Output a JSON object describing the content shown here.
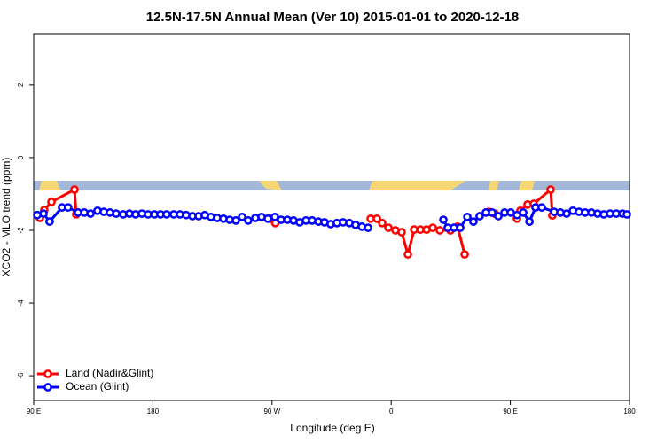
{
  "chart_data": {
    "type": "line",
    "title": "12.5N-17.5N Annual Mean (Ver 10)   2015-01-01 to 2020-12-18",
    "x_label": "Longitude (deg E)",
    "y_label": "XCO2 - MLO trend (ppm)",
    "xlim": [
      90,
      540
    ],
    "xticks": [
      {
        "value": 90,
        "label": "90 E"
      },
      180,
      {
        "value": 270,
        "label": "90 W"
      },
      {
        "value": 360,
        "label": "0"
      },
      {
        "value": 450,
        "label": "90 E"
      },
      {
        "value": 540,
        "label": "180"
      }
    ],
    "ylim": [
      -6.68,
      3.41
    ],
    "yticks": [
      2,
      0,
      -2,
      -4,
      -6
    ],
    "legend": "bottom-left",
    "series": [
      {
        "name": "Land (Nadir&Glint)",
        "color": "#ff0000",
        "x": [
          94.7,
          98,
          103.4,
          120.8,
          122.1,
          195,
          268.8,
          272.5,
          300,
          344.5,
          349.2,
          353.2,
          357.9,
          363.2,
          367.9,
          372.6,
          377.3,
          382,
          386.7,
          391.4,
          396.7,
          404.7,
          410.1,
          415.5,
          425,
          433.5,
          438.2,
          445,
          455,
          457.6,
          463,
          467.7,
          480.4,
          481.7
        ],
        "values": [
          -1.66,
          -1.44,
          -1.22,
          -0.88,
          -1.56,
          null,
          -1.68,
          -1.8,
          null,
          -1.68,
          -1.68,
          -1.8,
          -1.93,
          -2.0,
          -2.05,
          -2.66,
          -1.98,
          -1.98,
          -1.98,
          -1.93,
          -2.0,
          -2.0,
          -1.9,
          -2.66,
          null,
          -1.49,
          -1.54,
          null,
          -1.68,
          -1.46,
          -1.29,
          -1.27,
          -0.88,
          -1.59
        ]
      },
      {
        "name": "Ocean (Glint)",
        "color": "#0000ff",
        "x": [
          92.7,
          97.4,
          102,
          111.4,
          116,
          123.5,
          128.2,
          132.9,
          138.2,
          142.9,
          147.6,
          152.3,
          157.6,
          162.3,
          167,
          171.7,
          176.4,
          181.1,
          185.8,
          190.4,
          195.8,
          200.5,
          205.2,
          209.9,
          214.6,
          219.2,
          223.9,
          228.6,
          233.3,
          238,
          242.7,
          247.4,
          252,
          257.4,
          262.1,
          266.8,
          272.1,
          276.8,
          281.5,
          286.2,
          290.9,
          295.6,
          300.3,
          305,
          309.6,
          314.3,
          319,
          323.7,
          328.4,
          333.1,
          337.8,
          342.5,
          370,
          399.4,
          402.7,
          407.4,
          412.1,
          417.5,
          422.1,
          426.8,
          431.5,
          436.2,
          440.9,
          445.6,
          450.3,
          455,
          459.7,
          464.4,
          469,
          473.7,
          483.1,
          487.8,
          492.5,
          497.2,
          501.8,
          506.5,
          511.2,
          515.9,
          520.6,
          525.3,
          530,
          534.7,
          538
        ],
        "values": [
          -1.58,
          -1.54,
          -1.76,
          -1.37,
          -1.37,
          -1.51,
          -1.51,
          -1.54,
          -1.46,
          -1.49,
          -1.51,
          -1.54,
          -1.56,
          -1.54,
          -1.56,
          -1.54,
          -1.56,
          -1.56,
          -1.56,
          -1.56,
          -1.56,
          -1.56,
          -1.58,
          -1.61,
          -1.61,
          -1.58,
          -1.63,
          -1.66,
          -1.68,
          -1.71,
          -1.73,
          -1.63,
          -1.73,
          -1.66,
          -1.63,
          -1.68,
          -1.63,
          -1.71,
          -1.71,
          -1.73,
          -1.78,
          -1.73,
          -1.73,
          -1.76,
          -1.78,
          -1.83,
          -1.8,
          -1.78,
          -1.8,
          -1.85,
          -1.9,
          -1.93,
          null,
          -1.71,
          -1.93,
          -1.93,
          -1.93,
          -1.63,
          -1.76,
          -1.61,
          -1.51,
          -1.51,
          -1.61,
          -1.51,
          -1.51,
          -1.58,
          -1.51,
          -1.76,
          -1.37,
          -1.37,
          -1.49,
          -1.51,
          -1.54,
          -1.46,
          -1.49,
          -1.51,
          -1.51,
          -1.54,
          -1.56,
          -1.54,
          -1.54,
          -1.54,
          -1.56
        ]
      }
    ]
  }
}
